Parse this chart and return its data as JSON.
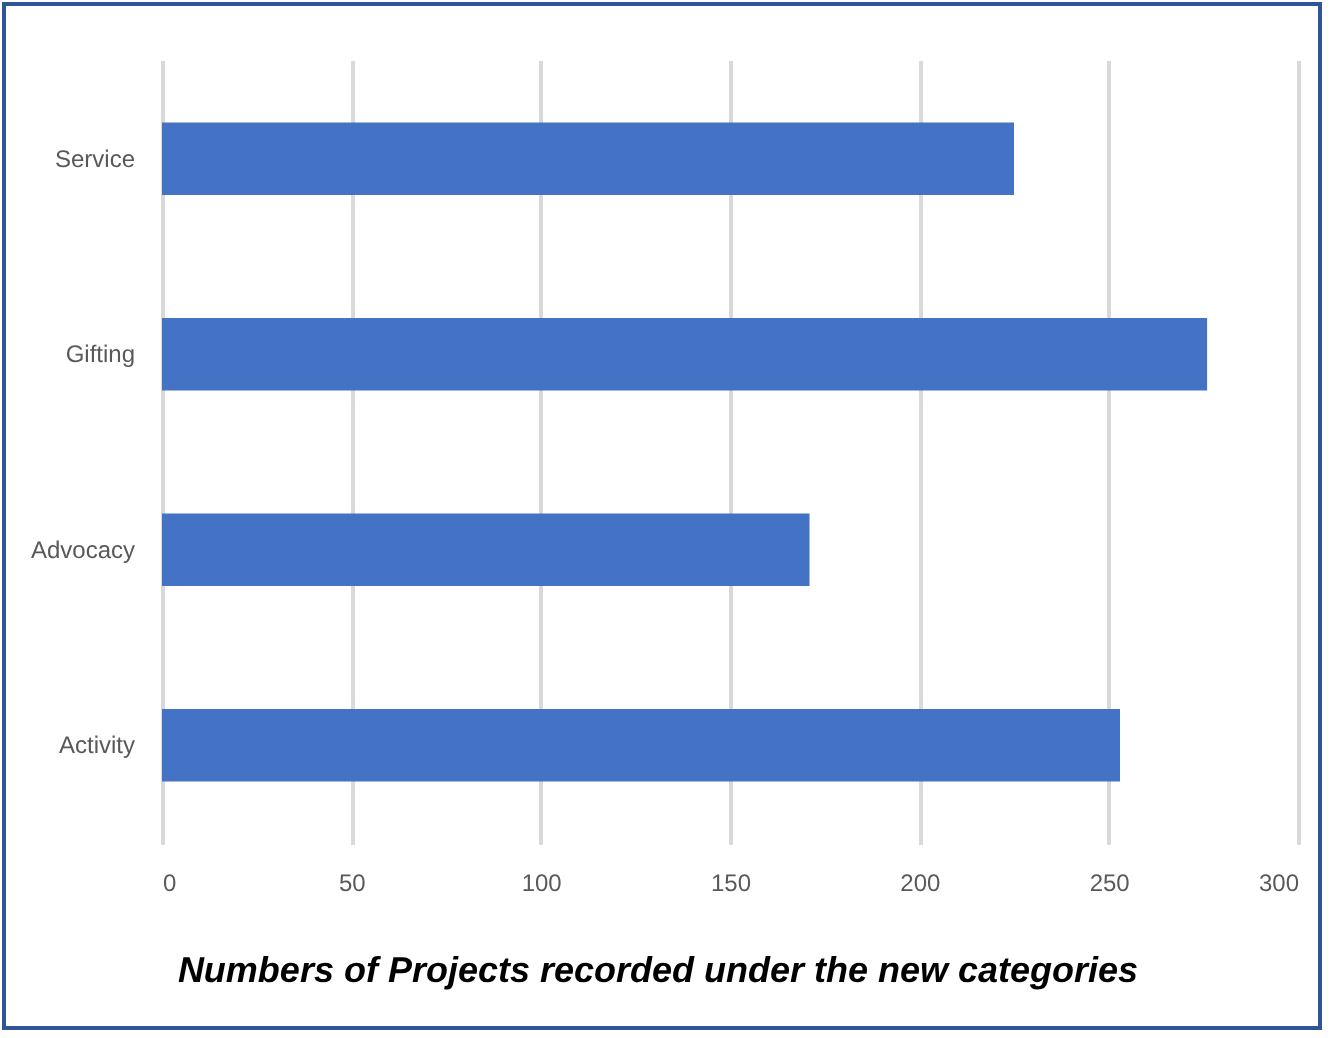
{
  "chart_data": {
    "type": "bar",
    "orientation": "horizontal",
    "title": "Numbers of Projects recorded under the new categories",
    "categories": [
      "Service",
      "Gifting",
      "Advocacy",
      "Activity"
    ],
    "values": [
      225,
      276,
      171,
      253
    ],
    "color": "#4472c4",
    "xlim": [
      0,
      300
    ],
    "xticks": [
      0,
      50,
      100,
      150,
      200,
      250,
      300
    ],
    "grid": "x"
  }
}
